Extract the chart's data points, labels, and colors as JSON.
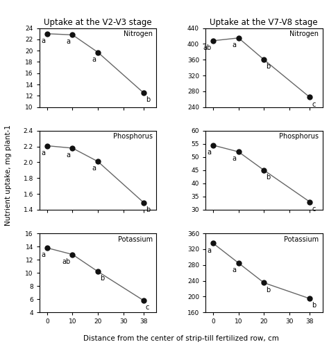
{
  "x": [
    0,
    10,
    20,
    38
  ],
  "col1_title": "Uptake at the V2-V3 stage",
  "col2_title": "Uptake at the V7-V8 stage",
  "xlabel": "Distance from the center of strip-till fertilized row, cm",
  "ylabel": "Nutrient uptake, mg plant-1",
  "plots": [
    {
      "label": "Nitrogen",
      "row": 0,
      "col": 0,
      "y": [
        23.0,
        22.8,
        19.7,
        12.5
      ],
      "sig": [
        "a",
        "a",
        "a",
        "b"
      ],
      "sig_side": [
        "left",
        "left",
        "left",
        "right"
      ],
      "ylim": [
        10,
        24
      ],
      "yticks": [
        10,
        12,
        14,
        16,
        18,
        20,
        22,
        24
      ]
    },
    {
      "label": "Nitrogen",
      "row": 0,
      "col": 1,
      "y": [
        408,
        415,
        360,
        265
      ],
      "sig": [
        "ab",
        "a",
        "b",
        "c"
      ],
      "sig_side": [
        "left",
        "left",
        "right",
        "right"
      ],
      "ylim": [
        240,
        440
      ],
      "yticks": [
        240,
        280,
        320,
        360,
        400,
        440
      ]
    },
    {
      "label": "Phosphorus",
      "row": 1,
      "col": 0,
      "y": [
        2.21,
        2.18,
        2.01,
        1.49
      ],
      "sig": [
        "a",
        "a",
        "a",
        "b"
      ],
      "sig_side": [
        "left",
        "left",
        "left",
        "right"
      ],
      "ylim": [
        1.4,
        2.4
      ],
      "yticks": [
        1.4,
        1.6,
        1.8,
        2.0,
        2.2,
        2.4
      ]
    },
    {
      "label": "Phosphorus",
      "row": 1,
      "col": 1,
      "y": [
        54.5,
        52.0,
        45.0,
        33.0
      ],
      "sig": [
        "a",
        "a",
        "b",
        "c"
      ],
      "sig_side": [
        "left",
        "left",
        "right",
        "right"
      ],
      "ylim": [
        30,
        60
      ],
      "yticks": [
        30,
        35,
        40,
        45,
        50,
        55,
        60
      ]
    },
    {
      "label": "Potassium",
      "row": 2,
      "col": 0,
      "y": [
        13.8,
        12.8,
        10.2,
        5.8
      ],
      "sig": [
        "a",
        "ab",
        "b",
        "c"
      ],
      "sig_side": [
        "left",
        "left",
        "right",
        "right"
      ],
      "ylim": [
        4,
        16
      ],
      "yticks": [
        4,
        6,
        8,
        10,
        12,
        14,
        16
      ]
    },
    {
      "label": "Potassium",
      "row": 2,
      "col": 1,
      "y": [
        335,
        285,
        235,
        195
      ],
      "sig": [
        "a",
        "a",
        "b",
        "b"
      ],
      "sig_side": [
        "left",
        "left",
        "right",
        "right"
      ],
      "ylim": [
        160,
        360
      ],
      "yticks": [
        160,
        200,
        240,
        280,
        320,
        360
      ]
    }
  ],
  "line_color": "#666666",
  "marker_color": "#111111",
  "marker_size": 5,
  "font_size": 7.5,
  "title_font_size": 8.5,
  "sig_font_size": 7.0
}
